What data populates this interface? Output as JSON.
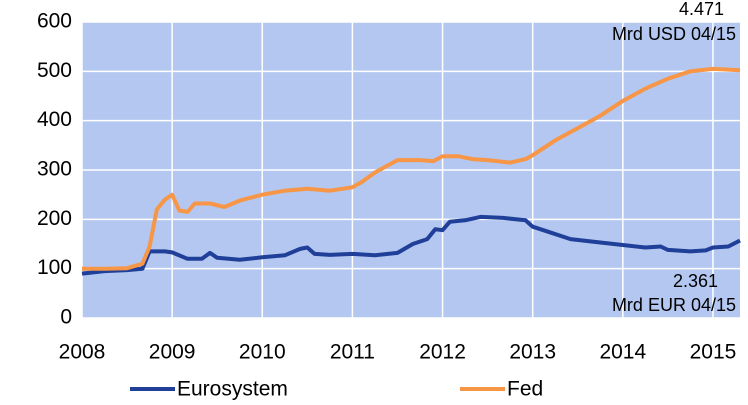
{
  "chart_data": {
    "type": "line",
    "series": [
      {
        "name": "Eurosystem",
        "color": "#1f3f99",
        "x": [
          2008.0,
          2008.25,
          2008.5,
          2008.67,
          2008.75,
          2008.92,
          2009.0,
          2009.17,
          2009.33,
          2009.42,
          2009.5,
          2009.75,
          2010.0,
          2010.25,
          2010.42,
          2010.5,
          2010.58,
          2010.75,
          2011.0,
          2011.25,
          2011.5,
          2011.67,
          2011.83,
          2011.92,
          2012.0,
          2012.08,
          2012.25,
          2012.42,
          2012.67,
          2012.92,
          2013.0,
          2013.17,
          2013.42,
          2013.75,
          2014.0,
          2014.25,
          2014.42,
          2014.5,
          2014.75,
          2014.92,
          2015.0,
          2015.17,
          2015.3
        ],
        "values": [
          90,
          95,
          97,
          100,
          135,
          135,
          133,
          120,
          120,
          132,
          122,
          118,
          123,
          127,
          140,
          143,
          130,
          128,
          130,
          127,
          132,
          150,
          160,
          180,
          178,
          195,
          198,
          205,
          203,
          198,
          185,
          175,
          160,
          153,
          148,
          143,
          145,
          138,
          135,
          137,
          143,
          145,
          157
        ]
      },
      {
        "name": "Fed",
        "color": "#f79646",
        "x": [
          2008.0,
          2008.25,
          2008.5,
          2008.67,
          2008.75,
          2008.83,
          2008.92,
          2009.0,
          2009.08,
          2009.17,
          2009.25,
          2009.42,
          2009.58,
          2009.75,
          2010.0,
          2010.25,
          2010.5,
          2010.75,
          2011.0,
          2011.1,
          2011.25,
          2011.5,
          2011.75,
          2011.9,
          2012.0,
          2012.17,
          2012.33,
          2012.5,
          2012.75,
          2012.92,
          2013.0,
          2013.25,
          2013.5,
          2013.75,
          2014.0,
          2014.25,
          2014.5,
          2014.75,
          2015.0,
          2015.3
        ],
        "values": [
          100,
          100,
          101,
          110,
          145,
          220,
          240,
          250,
          218,
          215,
          232,
          232,
          225,
          238,
          250,
          258,
          262,
          258,
          265,
          275,
          295,
          320,
          320,
          318,
          328,
          328,
          322,
          320,
          315,
          322,
          330,
          360,
          385,
          410,
          440,
          465,
          485,
          500,
          505,
          502
        ]
      }
    ],
    "xlim": [
      2008,
      2015.3
    ],
    "xticks": [
      2008,
      2009,
      2010,
      2011,
      2012,
      2013,
      2014,
      2015
    ],
    "ylim": [
      0,
      600
    ],
    "yticks": [
      0,
      100,
      200,
      300,
      400,
      500,
      600
    ],
    "grid": true,
    "annotations": [
      "4.471",
      "Mrd USD 04/15",
      "2.361",
      "Mrd EUR 04/15"
    ]
  }
}
